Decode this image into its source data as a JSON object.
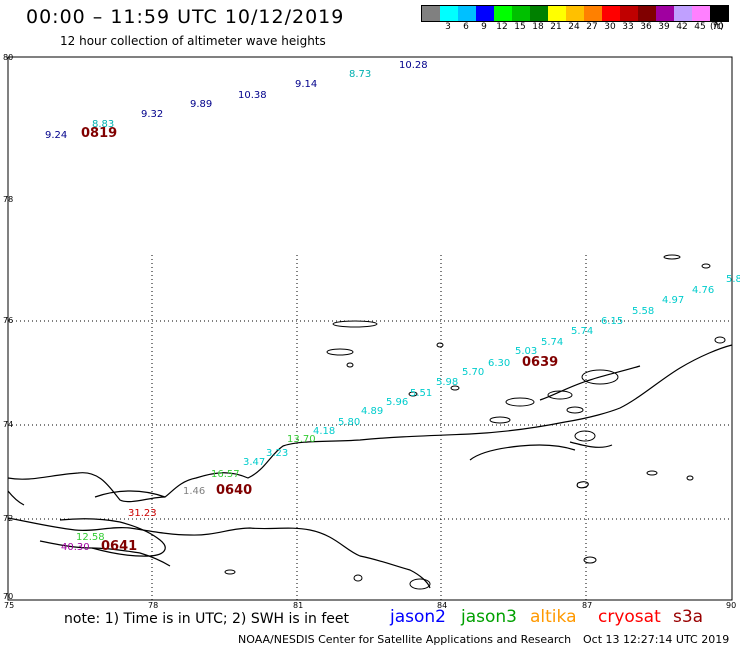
{
  "header": {
    "title": "00:00 – 11:59 UTC 10/12/2019",
    "subtitle": "12 hour collection of altimeter wave heights"
  },
  "color_scale": {
    "unit": "(ft)",
    "colors": [
      "#808080",
      "#00ffff",
      "#00c0ff",
      "#0000ff",
      "#00ff00",
      "#00c000",
      "#008000",
      "#ffff00",
      "#ffc000",
      "#ff8000",
      "#ff0000",
      "#c00000",
      "#800000",
      "#a000a0",
      "#c0a0ff",
      "#ff80ff",
      "#000000"
    ],
    "labels": [
      "",
      "3",
      "6",
      "9",
      "12",
      "15",
      "18",
      "21",
      "24",
      "27",
      "30",
      "33",
      "36",
      "39",
      "42",
      "45",
      "70"
    ]
  },
  "axes": {
    "lat_labels": [
      "80",
      "78",
      "76",
      "74",
      "72",
      "70"
    ],
    "lon_labels": [
      "75",
      "78",
      "81",
      "84",
      "87",
      "90"
    ]
  },
  "tracks": [
    {
      "time": "0819",
      "color": "#00008b",
      "points": [
        {
          "text": "9.24",
          "color": "#00008b"
        },
        {
          "text": "8.83",
          "color": "#00b0b0"
        },
        {
          "text": "9.32",
          "color": "#00008b"
        },
        {
          "text": "9.89",
          "color": "#00008b"
        },
        {
          "text": "10.38",
          "color": "#00008b"
        },
        {
          "text": "9.14",
          "color": "#00008b"
        },
        {
          "text": "8.73",
          "color": "#00b0b0"
        },
        {
          "text": "10.28",
          "color": "#00008b"
        }
      ]
    },
    {
      "time": "0639",
      "color": "#00cccc",
      "points": [
        {
          "text": "13.70",
          "color": "#33cc33"
        },
        {
          "text": "4.18",
          "color": "#00cccc"
        },
        {
          "text": "5.80",
          "color": "#00cccc"
        },
        {
          "text": "4.89",
          "color": "#00cccc"
        },
        {
          "text": "5.96",
          "color": "#00cccc"
        },
        {
          "text": "5.51",
          "color": "#00cccc"
        },
        {
          "text": "5.98",
          "color": "#00cccc"
        },
        {
          "text": "5.70",
          "color": "#00cccc"
        },
        {
          "text": "6.30",
          "color": "#00cccc"
        },
        {
          "text": "5.03",
          "color": "#00cccc"
        },
        {
          "text": "5.74",
          "color": "#00cccc"
        },
        {
          "text": "5.74",
          "color": "#00cccc"
        },
        {
          "text": "6.15",
          "color": "#00cccc"
        },
        {
          "text": "5.58",
          "color": "#00cccc"
        },
        {
          "text": "4.97",
          "color": "#00cccc"
        },
        {
          "text": "4.76",
          "color": "#00cccc"
        },
        {
          "text": "5.8",
          "color": "#00cccc"
        }
      ]
    },
    {
      "time": "0640",
      "color": "#00cccc",
      "points": [
        {
          "text": "1.46",
          "color": "#808080"
        },
        {
          "text": "16.57",
          "color": "#33cc33"
        },
        {
          "text": "3.47",
          "color": "#00cccc"
        },
        {
          "text": "3.23",
          "color": "#00cccc"
        }
      ]
    },
    {
      "time": "0641",
      "color": "#00cccc",
      "points": [
        {
          "text": "40.30",
          "color": "#a000a0"
        },
        {
          "text": "12.58",
          "color": "#33cc33"
        },
        {
          "text": "31.23",
          "color": "#cc0000"
        }
      ]
    }
  ],
  "footer": {
    "note": "note: 1) Time is in UTC; 2) SWH is in feet",
    "satellites": [
      {
        "name": "jason2",
        "color": "#0000ff"
      },
      {
        "name": "jason3",
        "color": "#00a000"
      },
      {
        "name": "altika",
        "color": "#ff9900"
      },
      {
        "name": "cryosat",
        "color": "#ff0000"
      },
      {
        "name": "s3a",
        "color": "#990000"
      }
    ],
    "credit": "NOAA/NESDIS Center for Satellite Applications and Research",
    "timestamp": "Oct 13 12:27:14 UTC 2019"
  }
}
